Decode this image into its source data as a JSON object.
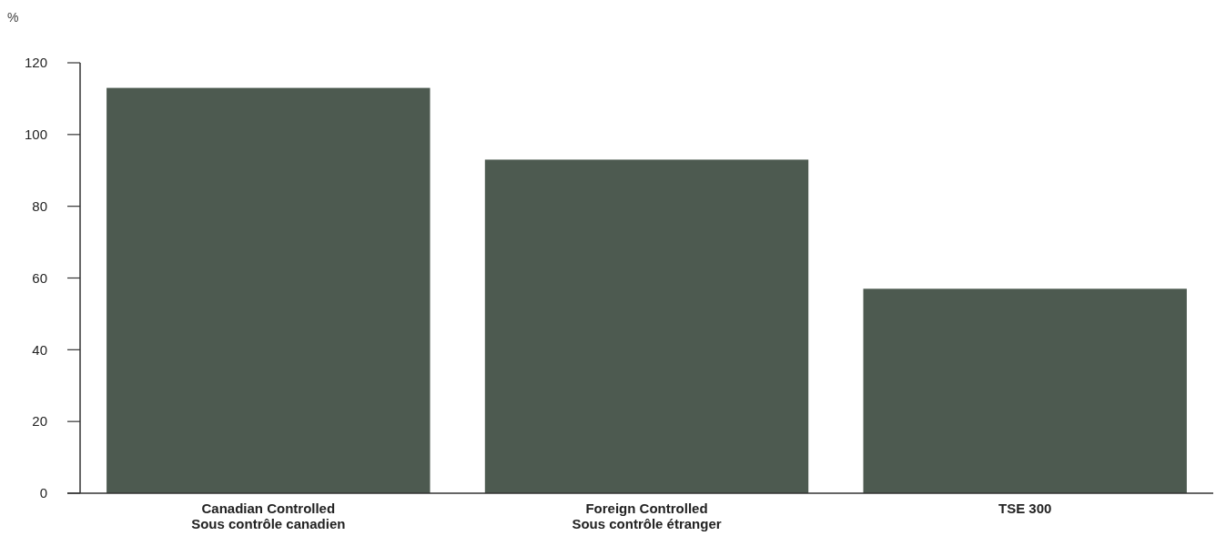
{
  "chart_data": {
    "type": "bar",
    "ylabel": "%",
    "categories": [
      "Canadian Controlled\nSous contrôle canadien",
      "Foreign Controlled\nSous contrôle étranger",
      "TSE 300"
    ],
    "values": [
      113,
      93,
      57
    ],
    "color": "#4d5a50",
    "ylim": [
      0,
      120
    ],
    "yticks": [
      0,
      20,
      40,
      60,
      80,
      100,
      120
    ],
    "grid": false
  }
}
